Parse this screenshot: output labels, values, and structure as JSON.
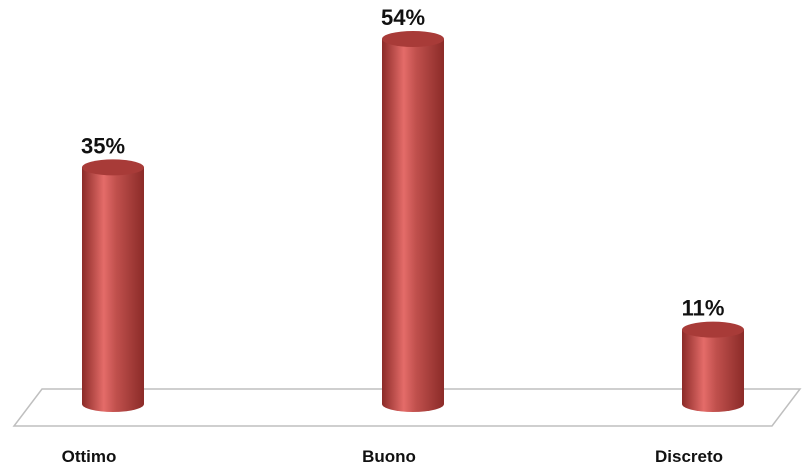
{
  "chart_data": {
    "type": "bar",
    "categories": [
      "Ottimo",
      "Buono",
      "Discreto"
    ],
    "values": [
      35,
      54,
      11
    ],
    "data_labels": [
      "35%",
      "54%",
      "11%"
    ],
    "title": "",
    "xlabel": "",
    "ylabel": "",
    "ylim": [
      0,
      54
    ],
    "grid": false,
    "legend": "none",
    "style": "3d-cylinder",
    "colors": {
      "bar_body": "#c0504d",
      "bar_highlight": "#e46c69",
      "bar_shadow": "#8b2b28",
      "bar_top": "#a83b38",
      "floor_stroke": "#bfbfbf"
    }
  }
}
